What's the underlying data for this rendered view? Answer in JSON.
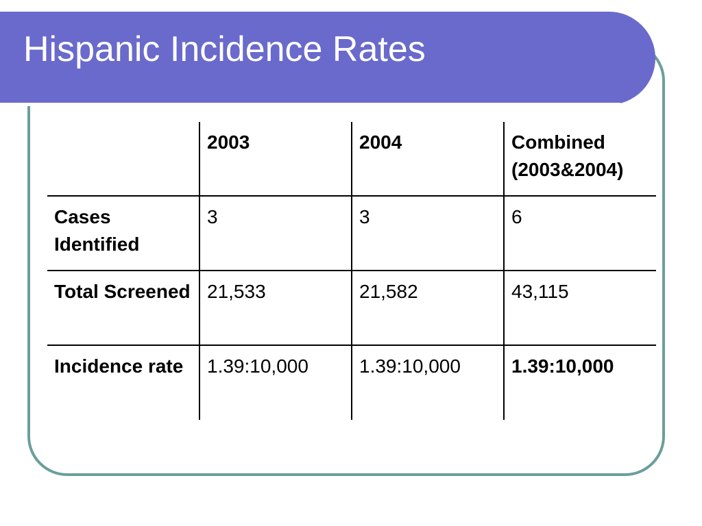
{
  "slide": {
    "title": "Hispanic Incidence Rates"
  },
  "colors": {
    "title_bar": "#6a6acc",
    "frame_border": "#6a9e9c",
    "text": "#000000"
  },
  "table": {
    "header": [
      "",
      "2003",
      "2004",
      "Combined (2003&2004)"
    ],
    "rows": [
      {
        "label": "Cases Identified",
        "values": [
          "3",
          "3",
          "6"
        ]
      },
      {
        "label": "Total Screened",
        "values": [
          "21,533",
          "21,582",
          "43,115"
        ]
      },
      {
        "label": "Incidence rate",
        "values": [
          "1.39:10,000",
          "1.39:10,000",
          "1.39:10,000"
        ]
      }
    ]
  }
}
